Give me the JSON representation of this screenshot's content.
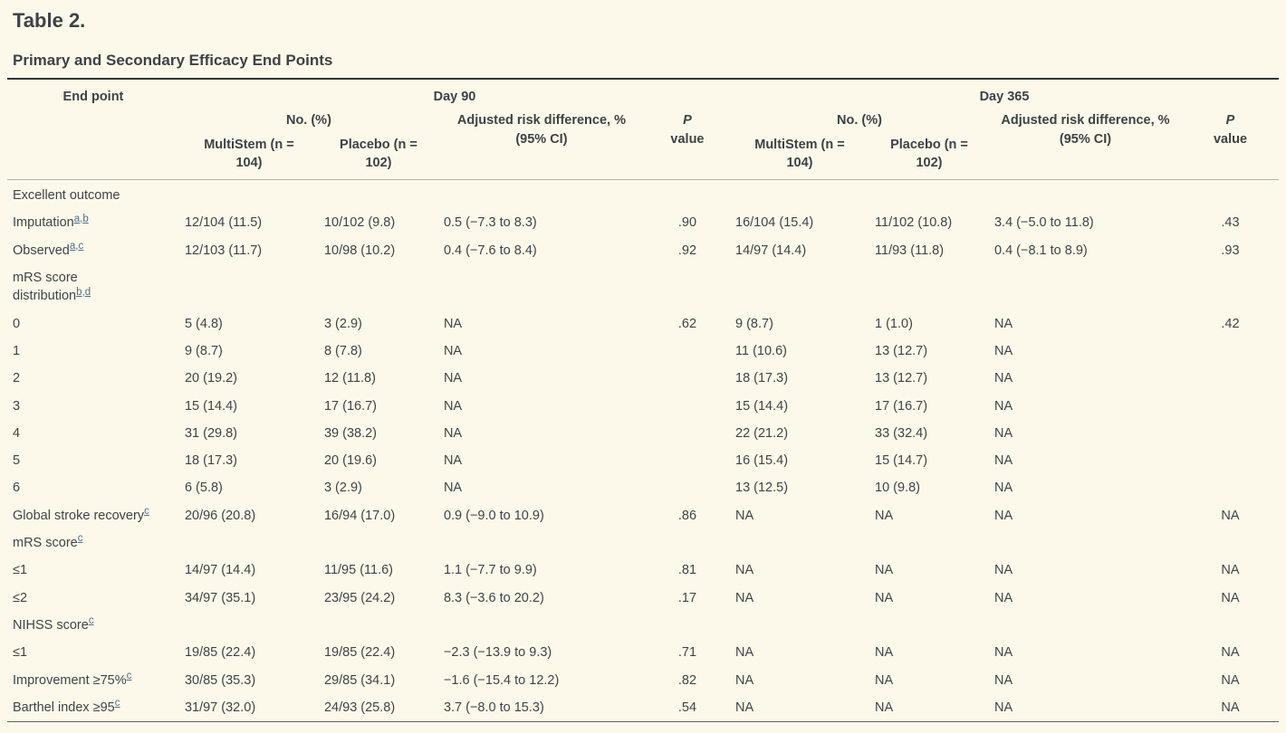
{
  "page": {
    "table_number": "Table 2.",
    "table_title": "Primary and Secondary Efficacy End Points"
  },
  "colors": {
    "background": "#fcf9ea",
    "text": "#3d4246",
    "footnote_link": "#4d7090",
    "rule_top": "#2e343a",
    "rule_header": "#b3b3aa",
    "rule_bottom": "#5f6058"
  },
  "table": {
    "headers": {
      "end_point": "End point",
      "day90": "Day 90",
      "day365": "Day 365",
      "no_pct": "No. (%)",
      "multistem_line1": "MultiStem (n =",
      "multistem_line2": "104)",
      "placebo_line1": "Placebo (n =",
      "placebo_line2": "102)",
      "adj_risk_line1": "Adjusted risk difference, %",
      "adj_risk_line2": "(95% CI)",
      "p": "P",
      "value": "value"
    },
    "rows": [
      {
        "label": "Excellent outcome",
        "sup": [],
        "cells": [
          "",
          "",
          "",
          "",
          "",
          "",
          "",
          ""
        ]
      },
      {
        "label": "Imputation",
        "sup": [
          "a",
          "b"
        ],
        "cells": [
          "12/104 (11.5)",
          "10/102 (9.8)",
          "0.5 (−7.3 to 8.3)",
          ".90",
          "16/104 (15.4)",
          "11/102 (10.8)",
          "3.4 (−5.0 to 11.8)",
          ".43"
        ]
      },
      {
        "label": "Observed",
        "sup": [
          "a",
          "c"
        ],
        "cells": [
          "12/103 (11.7)",
          "10/98 (10.2)",
          "0.4 (−7.6 to 8.4)",
          ".92",
          "14/97 (14.4)",
          "11/93 (11.8)",
          "0.4 (−8.1 to 8.9)",
          ".93"
        ]
      },
      {
        "label": "mRS score",
        "label2": "distribution",
        "sup": [
          "b",
          "d"
        ],
        "cells": [
          "",
          "",
          "",
          "",
          "",
          "",
          "",
          ""
        ]
      },
      {
        "label": "0",
        "sup": [],
        "cells": [
          "5 (4.8)",
          "3 (2.9)",
          "NA",
          ".62",
          "9 (8.7)",
          "1 (1.0)",
          "NA",
          ".42"
        ]
      },
      {
        "label": "1",
        "sup": [],
        "cells": [
          "9 (8.7)",
          "8 (7.8)",
          "NA",
          "",
          "11 (10.6)",
          "13 (12.7)",
          "NA",
          ""
        ]
      },
      {
        "label": "2",
        "sup": [],
        "cells": [
          "20 (19.2)",
          "12 (11.8)",
          "NA",
          "",
          "18 (17.3)",
          "13 (12.7)",
          "NA",
          ""
        ]
      },
      {
        "label": "3",
        "sup": [],
        "cells": [
          "15 (14.4)",
          "17 (16.7)",
          "NA",
          "",
          "15 (14.4)",
          "17 (16.7)",
          "NA",
          ""
        ]
      },
      {
        "label": "4",
        "sup": [],
        "cells": [
          "31 (29.8)",
          "39 (38.2)",
          "NA",
          "",
          "22 (21.2)",
          "33 (32.4)",
          "NA",
          ""
        ]
      },
      {
        "label": "5",
        "sup": [],
        "cells": [
          "18 (17.3)",
          "20 (19.6)",
          "NA",
          "",
          "16 (15.4)",
          "15 (14.7)",
          "NA",
          ""
        ]
      },
      {
        "label": "6",
        "sup": [],
        "cells": [
          "6 (5.8)",
          "3 (2.9)",
          "NA",
          "",
          "13 (12.5)",
          "10 (9.8)",
          "NA",
          ""
        ]
      },
      {
        "label": "Global stroke recovery",
        "sup": [
          "c"
        ],
        "cells": [
          "20/96 (20.8)",
          "16/94 (17.0)",
          "0.9 (−9.0 to 10.9)",
          ".86",
          "NA",
          "NA",
          "NA",
          "NA"
        ]
      },
      {
        "label": "mRS score",
        "sup": [
          "c"
        ],
        "cells": [
          "",
          "",
          "",
          "",
          "",
          "",
          "",
          ""
        ]
      },
      {
        "label": "≤1",
        "sup": [],
        "cells": [
          "14/97 (14.4)",
          "11/95 (11.6)",
          "1.1 (−7.7 to 9.9)",
          ".81",
          "NA",
          "NA",
          "NA",
          "NA"
        ]
      },
      {
        "label": "≤2",
        "sup": [],
        "cells": [
          "34/97 (35.1)",
          "23/95 (24.2)",
          "8.3 (−3.6 to 20.2)",
          ".17",
          "NA",
          "NA",
          "NA",
          "NA"
        ]
      },
      {
        "label": "NIHSS score",
        "sup": [
          "c"
        ],
        "cells": [
          "",
          "",
          "",
          "",
          "",
          "",
          "",
          ""
        ]
      },
      {
        "label": "≤1",
        "sup": [],
        "cells": [
          "19/85 (22.4)",
          "19/85 (22.4)",
          "−2.3 (−13.9 to 9.3)",
          ".71",
          "NA",
          "NA",
          "NA",
          "NA"
        ]
      },
      {
        "label": "Improvement ≥75%",
        "sup": [
          "c"
        ],
        "cells": [
          "30/85 (35.3)",
          "29/85 (34.1)",
          "−1.6 (−15.4 to 12.2)",
          ".82",
          "NA",
          "NA",
          "NA",
          "NA"
        ]
      },
      {
        "label": "Barthel index ≥95",
        "sup": [
          "c"
        ],
        "cells": [
          "31/97 (32.0)",
          "24/93 (25.8)",
          "3.7 (−8.0 to 15.3)",
          ".54",
          "NA",
          "NA",
          "NA",
          "NA"
        ]
      }
    ]
  }
}
